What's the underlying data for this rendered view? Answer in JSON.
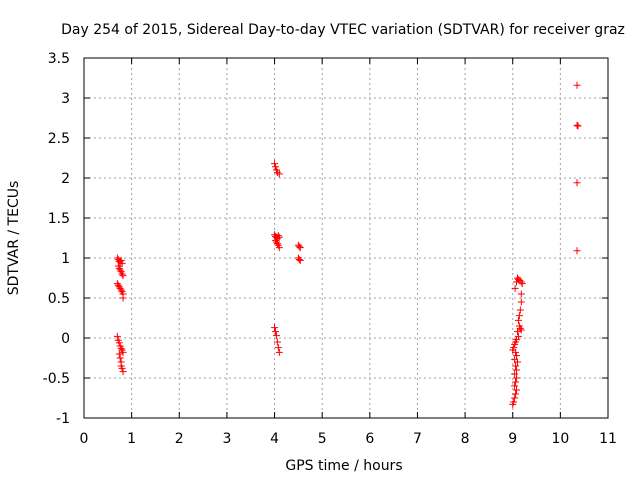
{
  "chart_data": {
    "type": "scatter",
    "title": "Day 254 of 2015, Sidereal Day-to-day VTEC variation (SDTVAR) for receiver graz",
    "xlabel": "GPS time / hours",
    "ylabel": "SDTVAR / TECUs",
    "xlim": [
      0,
      11
    ],
    "ylim": [
      -1,
      3.5
    ],
    "xticks": [
      0,
      1,
      2,
      3,
      4,
      5,
      6,
      7,
      8,
      9,
      10,
      11
    ],
    "yticks": [
      -1,
      -0.5,
      0,
      0.5,
      1,
      1.5,
      2,
      2.5,
      3,
      3.5
    ],
    "xtick_labels": [
      "0",
      "1",
      "2",
      "3",
      "4",
      "5",
      "6",
      "7",
      "8",
      "9",
      "10",
      "11"
    ],
    "ytick_labels": [
      "-1",
      "-0.5",
      "0",
      "0.5",
      "1",
      "1.5",
      "2",
      "2.5",
      "3",
      "3.5"
    ],
    "grid": true,
    "marker": "+",
    "color": "#ff0000",
    "series": [
      {
        "name": "SDTVAR",
        "points": [
          [
            0.7,
            1.0
          ],
          [
            0.72,
            0.98
          ],
          [
            0.74,
            0.96
          ],
          [
            0.76,
            0.95
          ],
          [
            0.78,
            0.97
          ],
          [
            0.8,
            0.93
          ],
          [
            0.72,
            0.9
          ],
          [
            0.74,
            0.87
          ],
          [
            0.76,
            0.85
          ],
          [
            0.78,
            0.83
          ],
          [
            0.8,
            0.8
          ],
          [
            0.82,
            0.78
          ],
          [
            0.7,
            0.68
          ],
          [
            0.72,
            0.66
          ],
          [
            0.74,
            0.64
          ],
          [
            0.76,
            0.62
          ],
          [
            0.78,
            0.6
          ],
          [
            0.8,
            0.58
          ],
          [
            0.82,
            0.55
          ],
          [
            0.82,
            0.5
          ],
          [
            0.7,
            0.02
          ],
          [
            0.72,
            -0.03
          ],
          [
            0.74,
            -0.06
          ],
          [
            0.76,
            -0.1
          ],
          [
            0.78,
            -0.13
          ],
          [
            0.8,
            -0.15
          ],
          [
            0.82,
            -0.18
          ],
          [
            0.74,
            -0.2
          ],
          [
            0.76,
            -0.25
          ],
          [
            0.78,
            -0.3
          ],
          [
            0.78,
            -0.35
          ],
          [
            0.8,
            -0.38
          ],
          [
            0.82,
            -0.42
          ],
          [
            4.0,
            2.18
          ],
          [
            4.02,
            2.14
          ],
          [
            4.04,
            2.1
          ],
          [
            4.06,
            2.07
          ],
          [
            4.1,
            2.05
          ],
          [
            4.0,
            1.29
          ],
          [
            4.02,
            1.27
          ],
          [
            4.04,
            1.26
          ],
          [
            4.06,
            1.24
          ],
          [
            4.08,
            1.28
          ],
          [
            4.1,
            1.26
          ],
          [
            4.02,
            1.22
          ],
          [
            4.04,
            1.2
          ],
          [
            4.06,
            1.18
          ],
          [
            4.08,
            1.16
          ],
          [
            4.1,
            1.13
          ],
          [
            4.5,
            1.16
          ],
          [
            4.52,
            1.14
          ],
          [
            4.54,
            1.13
          ],
          [
            4.5,
            1.0
          ],
          [
            4.52,
            0.98
          ],
          [
            4.54,
            0.97
          ],
          [
            4.0,
            0.13
          ],
          [
            4.02,
            0.08
          ],
          [
            4.04,
            0.03
          ],
          [
            4.06,
            -0.05
          ],
          [
            4.08,
            -0.12
          ],
          [
            4.1,
            -0.18
          ],
          [
            9.05,
            0.62
          ],
          [
            9.08,
            0.7
          ],
          [
            9.1,
            0.75
          ],
          [
            9.12,
            0.73
          ],
          [
            9.15,
            0.72
          ],
          [
            9.18,
            0.7
          ],
          [
            9.2,
            0.68
          ],
          [
            9.18,
            0.55
          ],
          [
            9.18,
            0.45
          ],
          [
            9.16,
            0.35
          ],
          [
            9.14,
            0.28
          ],
          [
            9.12,
            0.22
          ],
          [
            9.14,
            0.15
          ],
          [
            9.16,
            0.12
          ],
          [
            9.18,
            0.1
          ],
          [
            9.1,
            0.08
          ],
          [
            9.12,
            0.02
          ],
          [
            9.08,
            -0.02
          ],
          [
            9.06,
            -0.05
          ],
          [
            9.04,
            -0.08
          ],
          [
            9.02,
            -0.12
          ],
          [
            9.0,
            -0.15
          ],
          [
            9.06,
            -0.18
          ],
          [
            9.08,
            -0.22
          ],
          [
            9.04,
            -0.27
          ],
          [
            9.1,
            -0.3
          ],
          [
            9.06,
            -0.35
          ],
          [
            9.08,
            -0.4
          ],
          [
            9.04,
            -0.45
          ],
          [
            9.08,
            -0.5
          ],
          [
            9.06,
            -0.55
          ],
          [
            9.04,
            -0.6
          ],
          [
            9.08,
            -0.65
          ],
          [
            9.06,
            -0.7
          ],
          [
            9.04,
            -0.75
          ],
          [
            9.02,
            -0.8
          ],
          [
            9.0,
            -0.83
          ],
          [
            10.35,
            3.16
          ],
          [
            10.35,
            2.66
          ],
          [
            10.37,
            2.65
          ],
          [
            10.35,
            1.94
          ],
          [
            10.35,
            1.09
          ]
        ]
      }
    ]
  }
}
